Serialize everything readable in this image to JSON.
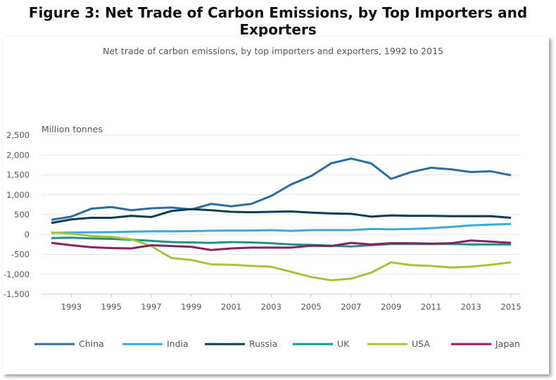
{
  "figure_title": "Figure 3: Net Trade of Carbon Emissions, by Top Importers and Exporters",
  "chart_data": {
    "type": "line",
    "title": "Net trade of carbon emissions, by top importers and exporters, 1992 to 2015",
    "ylabel": "Million tonnes",
    "xlabel": "",
    "ylim": [
      -1500,
      2500
    ],
    "xlim": [
      1992,
      2015
    ],
    "yticks": [
      "2,500",
      "2,000",
      "1,500",
      "1,000",
      "500",
      "0",
      "-500",
      "-1,000",
      "-1,500"
    ],
    "ytick_values": [
      2500,
      2000,
      1500,
      1000,
      500,
      0,
      -500,
      -1000,
      -1500
    ],
    "xticks": [
      1993,
      1995,
      1997,
      1999,
      2001,
      2003,
      2005,
      2007,
      2009,
      2011,
      2013,
      2015
    ],
    "grid": true,
    "legend": "bottom",
    "x": [
      1992,
      1993,
      1994,
      1995,
      1996,
      1997,
      1998,
      1999,
      2000,
      2001,
      2002,
      2003,
      2004,
      2005,
      2006,
      2007,
      2008,
      2009,
      2010,
      2011,
      2012,
      2013,
      2014,
      2015
    ],
    "series": [
      {
        "name": "China",
        "color": "#2d6ca2",
        "values": [
          370,
          450,
          650,
          690,
          610,
          660,
          680,
          630,
          770,
          710,
          770,
          970,
          1260,
          1470,
          1790,
          1910,
          1790,
          1400,
          1570,
          1680,
          1640,
          1570,
          1590,
          1490
        ]
      },
      {
        "name": "India",
        "color": "#3aa9d9",
        "values": [
          40,
          50,
          55,
          60,
          70,
          80,
          80,
          85,
          95,
          100,
          100,
          110,
          90,
          110,
          110,
          110,
          140,
          130,
          140,
          160,
          190,
          230,
          250,
          265
        ]
      },
      {
        "name": "Russia",
        "color": "#0f3c4e",
        "values": [
          290,
          380,
          420,
          420,
          470,
          440,
          590,
          640,
          610,
          570,
          560,
          570,
          580,
          550,
          530,
          520,
          450,
          480,
          470,
          470,
          460,
          460,
          460,
          420
        ]
      },
      {
        "name": "UK",
        "color": "#1e9387",
        "values": [
          -90,
          -80,
          -100,
          -110,
          -130,
          -160,
          -190,
          -200,
          -210,
          -190,
          -200,
          -220,
          -250,
          -260,
          -280,
          -300,
          -270,
          -240,
          -240,
          -240,
          -240,
          -250,
          -250,
          -250
        ]
      },
      {
        "name": "USA",
        "color": "#a8c23a",
        "values": [
          50,
          20,
          -40,
          -60,
          -120,
          -290,
          -590,
          -640,
          -750,
          -760,
          -790,
          -810,
          -940,
          -1070,
          -1150,
          -1110,
          -960,
          -700,
          -770,
          -790,
          -830,
          -810,
          -760,
          -700
        ]
      },
      {
        "name": "Japan",
        "color": "#8b1f5f",
        "values": [
          -210,
          -270,
          -320,
          -340,
          -350,
          -270,
          -290,
          -310,
          -390,
          -350,
          -330,
          -330,
          -330,
          -280,
          -290,
          -210,
          -250,
          -220,
          -220,
          -230,
          -220,
          -150,
          -180,
          -210
        ]
      }
    ]
  }
}
